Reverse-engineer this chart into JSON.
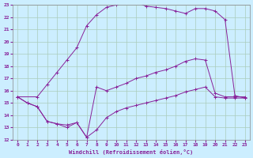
{
  "bg_color": "#cceeff",
  "grid_color": "#aaccbb",
  "line_color": "#882299",
  "xlabel": "Windchill (Refroidissement éolien,°C)",
  "xlim": [
    -0.5,
    23.5
  ],
  "ylim": [
    12,
    23
  ],
  "xticks": [
    0,
    1,
    2,
    3,
    4,
    5,
    6,
    7,
    8,
    9,
    10,
    11,
    12,
    13,
    14,
    15,
    16,
    17,
    18,
    19,
    20,
    21,
    22,
    23
  ],
  "yticks": [
    12,
    13,
    14,
    15,
    16,
    17,
    18,
    19,
    20,
    21,
    22,
    23
  ],
  "top_x": [
    0,
    2,
    3,
    4,
    5,
    6,
    7,
    8,
    9,
    10,
    11,
    12,
    13,
    14,
    15,
    16,
    17,
    18,
    19,
    20,
    21,
    22,
    23
  ],
  "top_y": [
    15.5,
    15.5,
    16.5,
    17.5,
    18.5,
    19.5,
    21.3,
    22.2,
    22.8,
    23.0,
    23.2,
    23.2,
    22.9,
    22.8,
    22.7,
    22.5,
    22.3,
    22.7,
    22.7,
    22.5,
    21.8,
    15.6,
    15.4
  ],
  "mid_x": [
    0,
    1,
    2,
    3,
    4,
    5,
    6,
    7,
    8,
    9,
    10,
    11,
    12,
    13,
    14,
    15,
    16,
    17,
    18,
    19,
    20,
    21,
    22,
    23
  ],
  "mid_y": [
    15.5,
    15.0,
    14.7,
    13.5,
    13.3,
    13.2,
    13.4,
    12.2,
    16.3,
    16.0,
    16.3,
    16.6,
    17.0,
    17.2,
    17.5,
    17.7,
    18.0,
    18.4,
    18.6,
    18.5,
    15.8,
    15.5,
    15.5,
    15.5
  ],
  "bot_x": [
    0,
    1,
    2,
    3,
    4,
    5,
    6,
    7,
    8,
    9,
    10,
    11,
    12,
    13,
    14,
    15,
    16,
    17,
    18,
    19,
    20,
    21,
    22,
    23
  ],
  "bot_y": [
    15.5,
    15.0,
    14.7,
    13.5,
    13.3,
    13.0,
    13.4,
    12.2,
    12.8,
    13.8,
    14.3,
    14.6,
    14.8,
    15.0,
    15.2,
    15.4,
    15.6,
    15.9,
    16.1,
    16.3,
    15.5,
    15.4,
    15.4,
    15.4
  ]
}
